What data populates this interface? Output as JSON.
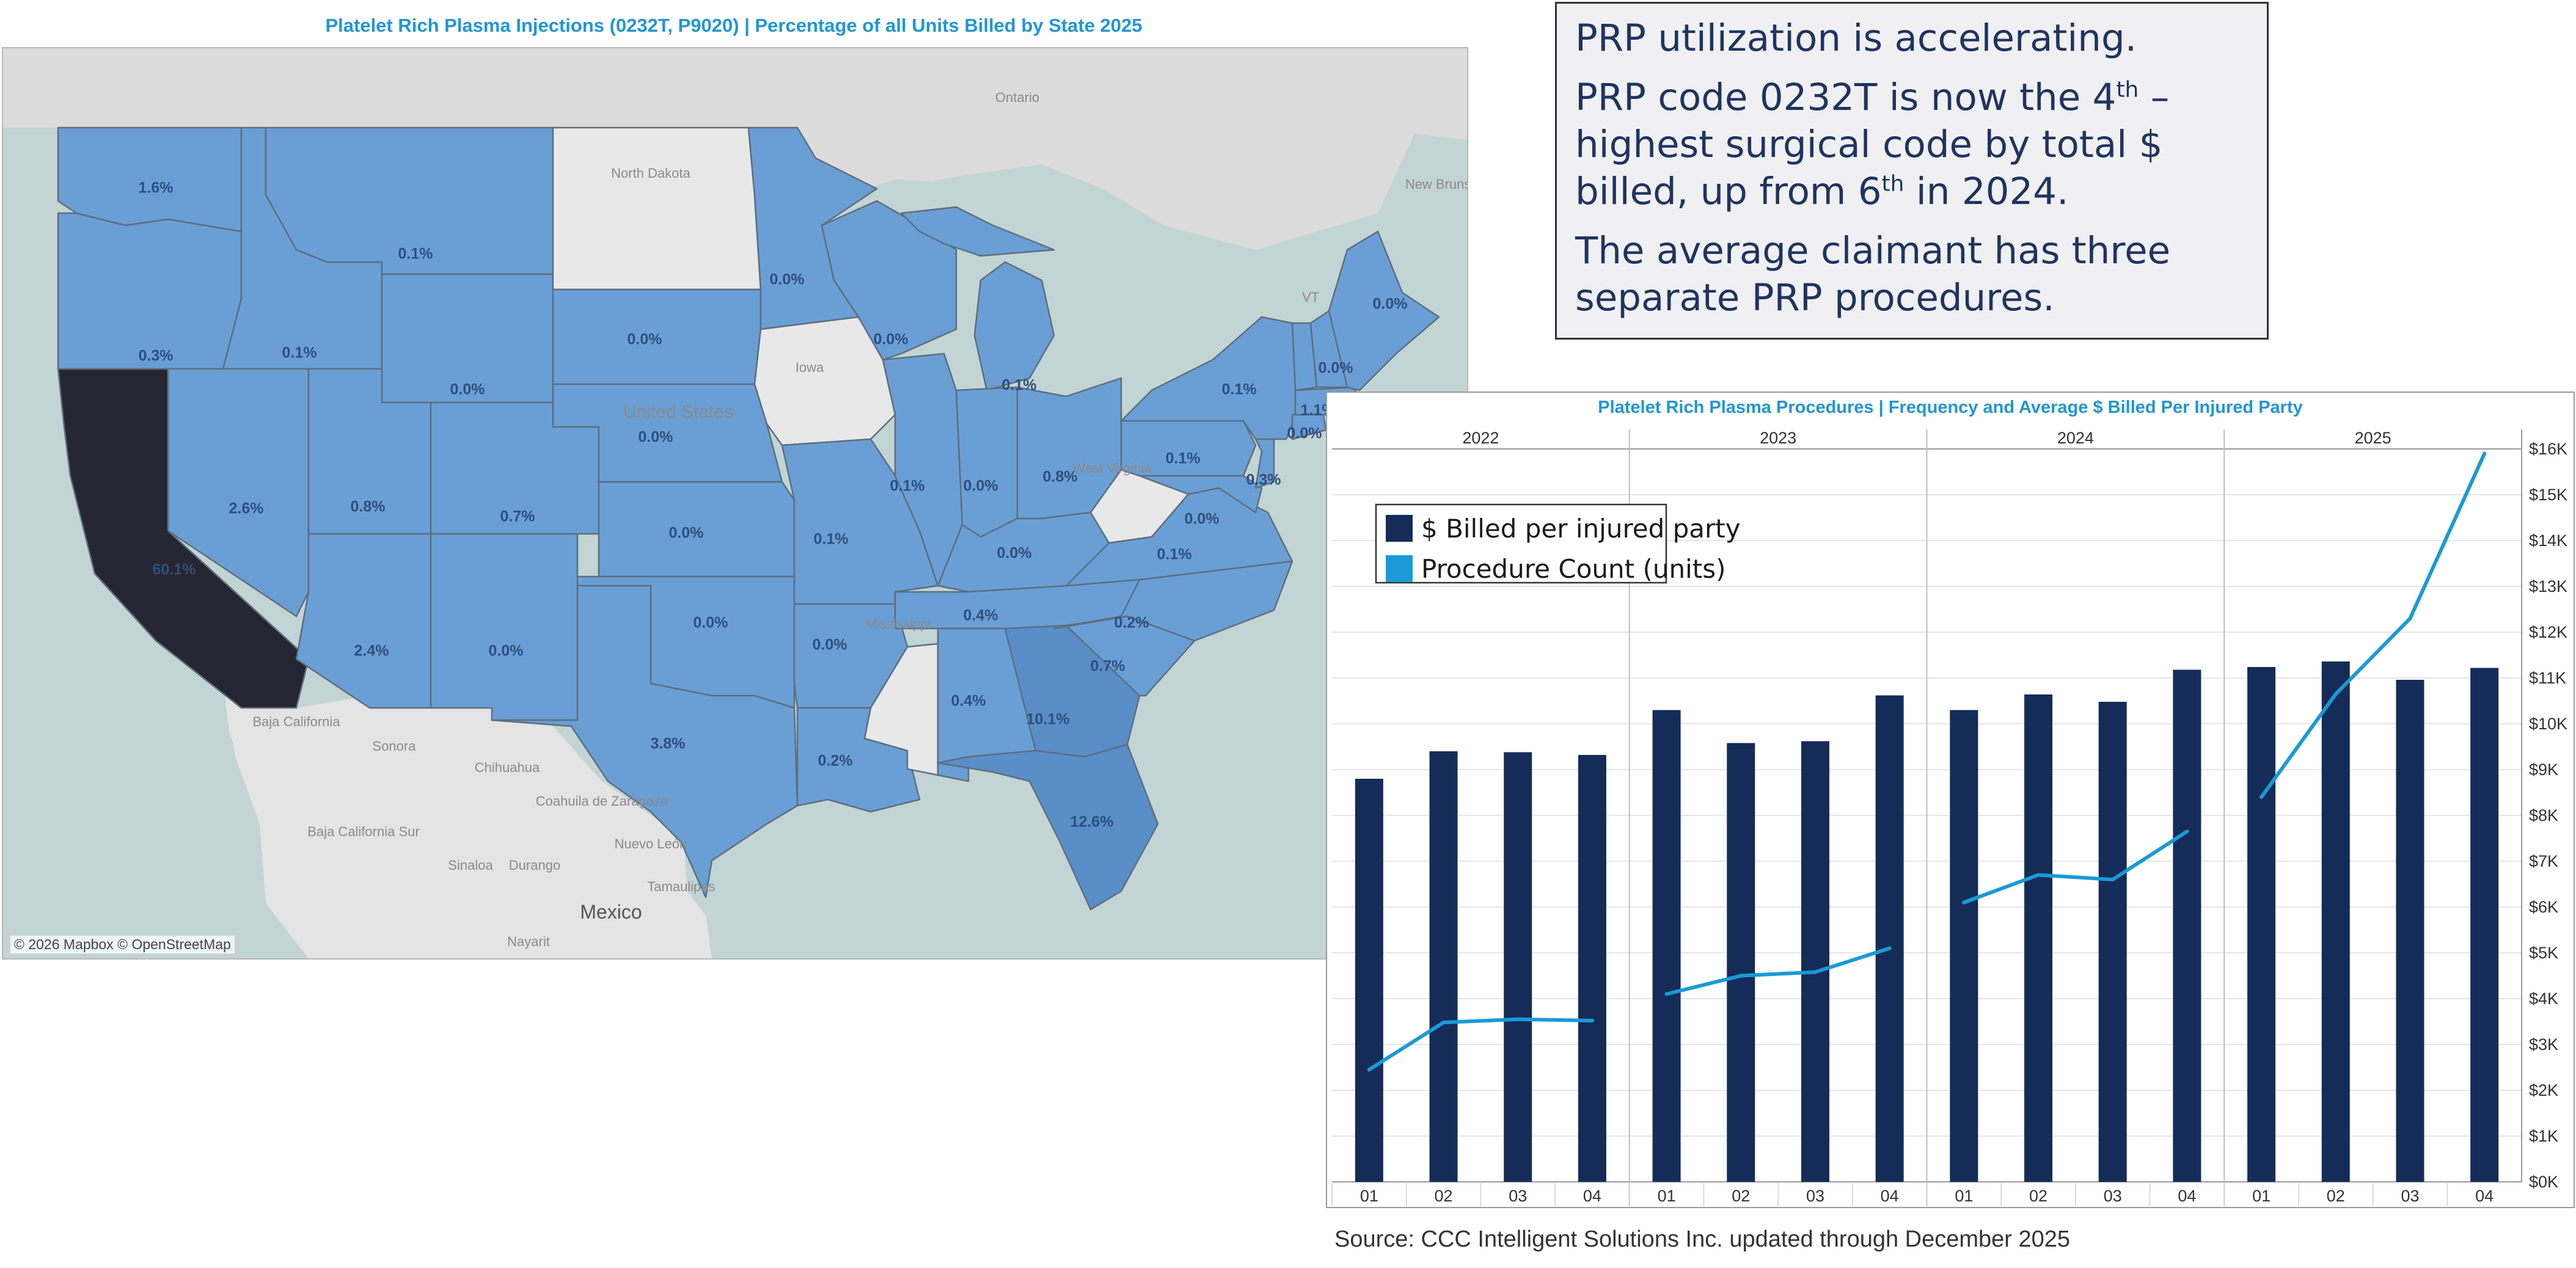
{
  "map": {
    "title": "Platelet Rich Plasma Injections (0232T, P9020) | Percentage of all Units Billed by State 2025",
    "attribution": "© 2026 Mapbox © OpenStreetMap",
    "colors": {
      "high": "#262632",
      "mid": "#5a8ec8",
      "base": "#6a9fd6",
      "nodata": "#e8e8e8",
      "land": "#dcdcdc",
      "water": "#c3d4d4"
    },
    "place_labels": [
      "North Dakota",
      "Iowa",
      "United States",
      "West Virginia",
      "Mississippi",
      "Ontario",
      "New Brunswick",
      "VT",
      "Baja California",
      "Sonora",
      "Chihuahua",
      "Coahuila de Zaragoza",
      "Nuevo León",
      "Baja California Sur",
      "Sinaloa",
      "Durango",
      "Tamaulipas",
      "Mexico",
      "Nayarit"
    ],
    "state_values": [
      {
        "state": "Washington",
        "value": "1.6%"
      },
      {
        "state": "Oregon",
        "value": "0.3%"
      },
      {
        "state": "California",
        "value": "60.1%"
      },
      {
        "state": "Idaho",
        "value": "0.1%"
      },
      {
        "state": "Montana",
        "value": "0.1%"
      },
      {
        "state": "Nevada",
        "value": "2.6%"
      },
      {
        "state": "Wyoming",
        "value": "0.0%"
      },
      {
        "state": "Utah",
        "value": "0.8%"
      },
      {
        "state": "Colorado",
        "value": "0.7%"
      },
      {
        "state": "Arizona",
        "value": "2.4%"
      },
      {
        "state": "New Mexico",
        "value": "0.0%"
      },
      {
        "state": "South Dakota",
        "value": "0.0%"
      },
      {
        "state": "Nebraska",
        "value": "0.0%"
      },
      {
        "state": "Kansas",
        "value": "0.0%"
      },
      {
        "state": "Oklahoma",
        "value": "0.0%"
      },
      {
        "state": "Texas",
        "value": "3.8%"
      },
      {
        "state": "Minnesota",
        "value": "0.0%"
      },
      {
        "state": "Missouri",
        "value": "0.1%"
      },
      {
        "state": "Arkansas",
        "value": "0.0%"
      },
      {
        "state": "Louisiana",
        "value": "0.2%"
      },
      {
        "state": "Wisconsin",
        "value": "0.0%"
      },
      {
        "state": "Illinois",
        "value": "0.1%"
      },
      {
        "state": "Michigan",
        "value": "0.1%"
      },
      {
        "state": "Indiana",
        "value": "0.0%"
      },
      {
        "state": "Ohio",
        "value": "0.8%"
      },
      {
        "state": "Kentucky",
        "value": "0.0%"
      },
      {
        "state": "Tennessee",
        "value": "0.4%"
      },
      {
        "state": "Alabama",
        "value": "0.4%"
      },
      {
        "state": "Georgia",
        "value": "10.1%"
      },
      {
        "state": "Florida",
        "value": "12.6%"
      },
      {
        "state": "South Carolina",
        "value": "0.7%"
      },
      {
        "state": "North Carolina",
        "value": "0.2%"
      },
      {
        "state": "Virginia",
        "value": "0.1%"
      },
      {
        "state": "Maryland",
        "value": "0.0%"
      },
      {
        "state": "New Jersey",
        "value": "0.3%"
      },
      {
        "state": "Pennsylvania",
        "value": "0.1%"
      },
      {
        "state": "New York",
        "value": "0.1%"
      },
      {
        "state": "Connecticut",
        "value": "0.0%"
      },
      {
        "state": "Massachusetts",
        "value": "1.1%"
      },
      {
        "state": "New Hampshire",
        "value": "0.0%"
      },
      {
        "state": "Maine",
        "value": "0.0%"
      }
    ]
  },
  "callout": {
    "line1": "PRP utilization is accelerating.",
    "line2_pre": "PRP code 0232T is now the 4",
    "line2_sup1": "th",
    "line2_mid": " –highest surgical code by total $ billed, up from 6",
    "line2_sup2": "th",
    "line2_post": " in 2024.",
    "line3": "The average claimant has three separate PRP procedures."
  },
  "chart_data": {
    "type": "bar",
    "title": "Platelet Rich Plasma Procedures  | Frequency and Average $ Billed Per Injured Party",
    "years": [
      "2022",
      "2023",
      "2024",
      "2025"
    ],
    "categories": [
      "Q1",
      "Q2",
      "Q3",
      "Q4",
      "Q1",
      "Q2",
      "Q3",
      "Q4",
      "Q1",
      "Q2",
      "Q3",
      "Q4",
      "Q1",
      "Q2",
      "Q3",
      "Q4"
    ],
    "series": [
      {
        "name": "$ Billed per injured party",
        "type": "bar",
        "color": "#152c58",
        "values": [
          8800,
          9400,
          9380,
          9320,
          10300,
          9580,
          9620,
          10620,
          10300,
          10640,
          10480,
          11180,
          11240,
          11360,
          10960,
          11220
        ]
      },
      {
        "name": "Procedure Count (units)",
        "type": "line",
        "color": "#1a9ad6",
        "values": [
          2450,
          3480,
          3550,
          3520,
          4100,
          4500,
          4580,
          5100,
          6100,
          6700,
          6600,
          7650,
          8400,
          10650,
          12300,
          15900
        ]
      }
    ],
    "y_axis": {
      "min": 0,
      "max": 16000,
      "step": 1000,
      "side": "right",
      "tick_labels": [
        "$0K",
        "$1K",
        "$2K",
        "$3K",
        "$4K",
        "$5K",
        "$6K",
        "$7K",
        "$8K",
        "$9K",
        "$10K",
        "$11K",
        "$12K",
        "$13K",
        "$14K",
        "$15K",
        "$16K"
      ]
    },
    "legend": {
      "placement": "top-left"
    },
    "grid": true
  },
  "source": "Source: CCC Intelligent Solutions Inc. updated through December 2025"
}
